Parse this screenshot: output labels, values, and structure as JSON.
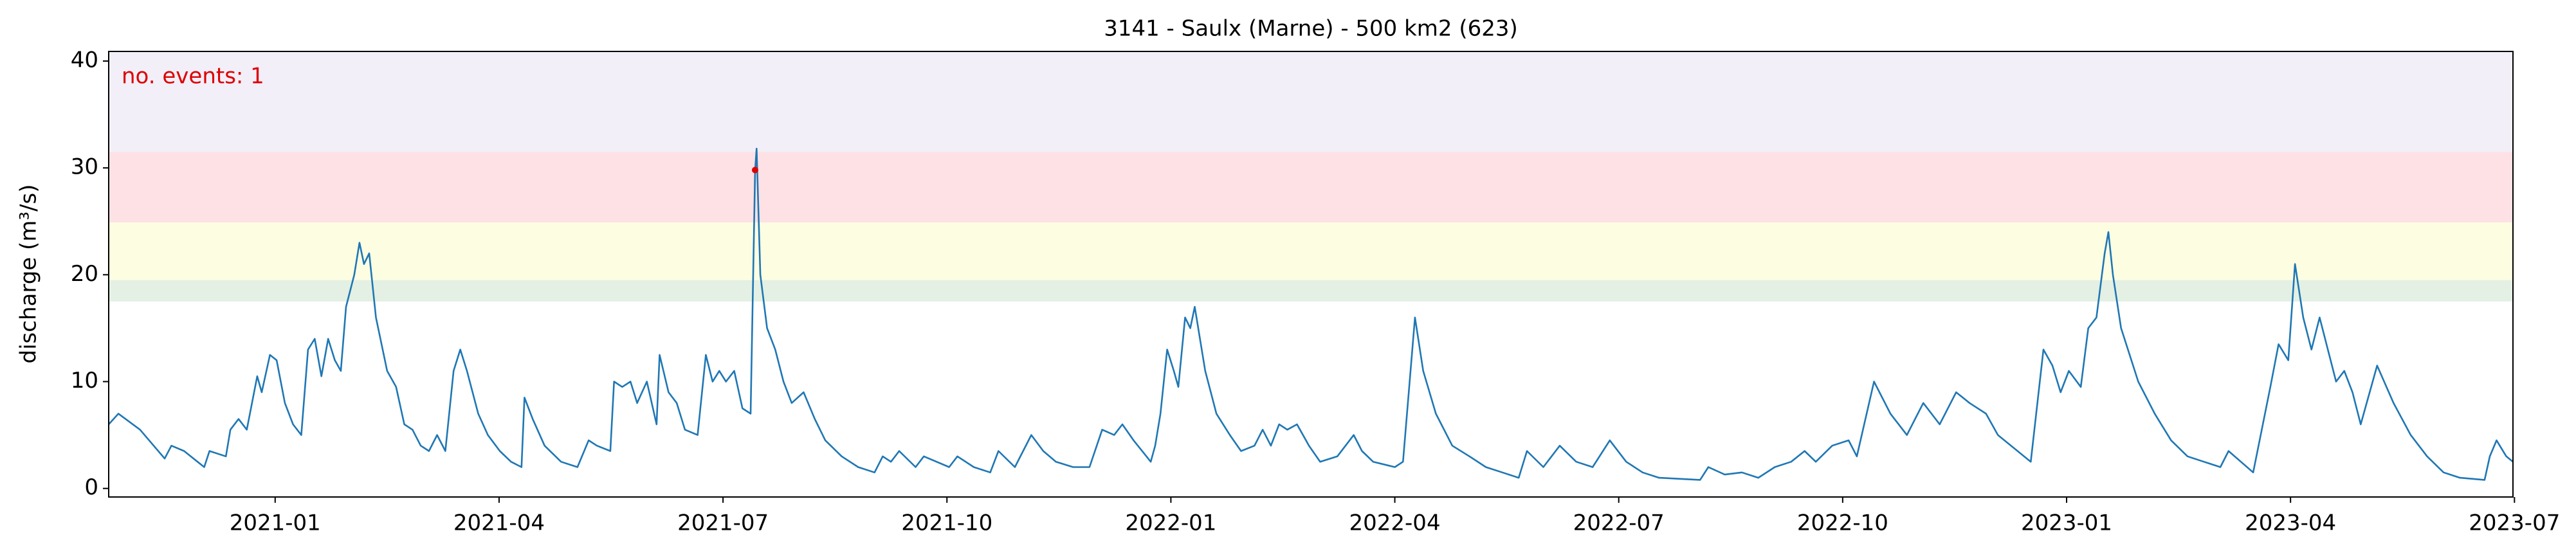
{
  "chart_data": {
    "type": "line",
    "title": "3141 - Saulx (Marne) - 500 km2 (623)",
    "ylabel": "discharge (m³/s)",
    "annotation": "no. events: 1",
    "annotation_color": "#dd0000",
    "xlim": [
      -2.23,
      29.98
    ],
    "xticks": [
      {
        "value": 0,
        "label": "2021-01"
      },
      {
        "value": 3,
        "label": "2021-04"
      },
      {
        "value": 6,
        "label": "2021-07"
      },
      {
        "value": 9,
        "label": "2021-10"
      },
      {
        "value": 12,
        "label": "2022-01"
      },
      {
        "value": 15,
        "label": "2022-04"
      },
      {
        "value": 18,
        "label": "2022-07"
      },
      {
        "value": 21,
        "label": "2022-10"
      },
      {
        "value": 24,
        "label": "2023-01"
      },
      {
        "value": 27,
        "label": "2023-04"
      },
      {
        "value": 30,
        "label": "2023-07"
      }
    ],
    "ylim": [
      -0.8,
      40.9
    ],
    "yticks": [
      0,
      10,
      20,
      30,
      40
    ],
    "bands": [
      {
        "from": 17.5,
        "to": 19.5,
        "color": "#e3f0e3"
      },
      {
        "from": 19.5,
        "to": 24.9,
        "color": "#fdfde2"
      },
      {
        "from": 24.9,
        "to": 31.5,
        "color": "#fde1e4"
      },
      {
        "from": 31.5,
        "to": 40.9,
        "color": "#f2eff9"
      }
    ],
    "events": {
      "color": "#dd0000",
      "x": [
        6.43
      ],
      "values": [
        29.8
      ]
    },
    "series": [
      {
        "color": "#1f77b4",
        "x": [
          -2.23,
          -2.1,
          -1.81,
          -1.48,
          -1.39,
          -1.22,
          -1.04,
          -0.95,
          -0.88,
          -0.66,
          -0.6,
          -0.49,
          -0.38,
          -0.24,
          -0.18,
          -0.07,
          0.02,
          0.13,
          0.24,
          0.35,
          0.44,
          0.53,
          0.62,
          0.71,
          0.8,
          0.88,
          0.95,
          1.06,
          1.13,
          1.19,
          1.26,
          1.35,
          1.5,
          1.62,
          1.73,
          1.84,
          1.95,
          2.06,
          2.17,
          2.28,
          2.39,
          2.48,
          2.57,
          2.72,
          2.85,
          3.01,
          3.16,
          3.3,
          3.34,
          3.45,
          3.61,
          3.83,
          4.05,
          4.2,
          4.31,
          4.49,
          4.54,
          4.65,
          4.76,
          4.85,
          4.98,
          5.11,
          5.15,
          5.27,
          5.38,
          5.49,
          5.66,
          5.77,
          5.86,
          5.95,
          6.04,
          6.15,
          6.26,
          6.37,
          6.43,
          6.45,
          6.5,
          6.59,
          6.7,
          6.81,
          6.92,
          7.08,
          7.23,
          7.37,
          7.59,
          7.81,
          8.03,
          8.14,
          8.25,
          8.36,
          8.58,
          8.69,
          9.03,
          9.14,
          9.36,
          9.58,
          9.69,
          9.91,
          10.13,
          10.29,
          10.46,
          10.69,
          10.91,
          11.08,
          11.24,
          11.35,
          11.5,
          11.73,
          11.79,
          11.86,
          11.95,
          12.04,
          12.1,
          12.19,
          12.26,
          12.32,
          12.46,
          12.61,
          12.79,
          12.94,
          13.12,
          13.23,
          13.34,
          13.45,
          13.56,
          13.69,
          13.85,
          14.0,
          14.23,
          14.45,
          14.56,
          14.71,
          15.0,
          15.11,
          15.27,
          15.38,
          15.55,
          15.77,
          16.0,
          16.22,
          16.44,
          16.66,
          16.77,
          16.99,
          17.21,
          17.43,
          17.65,
          17.88,
          18.1,
          18.32,
          18.54,
          19.09,
          19.2,
          19.42,
          19.65,
          19.87,
          20.09,
          20.31,
          20.49,
          20.64,
          20.86,
          21.08,
          21.19,
          21.42,
          21.64,
          21.86,
          22.08,
          22.3,
          22.52,
          22.7,
          22.92,
          23.08,
          23.52,
          23.69,
          23.81,
          23.92,
          24.03,
          24.19,
          24.29,
          24.4,
          24.51,
          24.56,
          24.62,
          24.73,
          24.96,
          25.18,
          25.4,
          25.62,
          25.84,
          26.06,
          26.17,
          26.5,
          26.73,
          26.84,
          26.97,
          27.06,
          27.17,
          27.28,
          27.39,
          27.5,
          27.61,
          27.72,
          27.83,
          27.94,
          28.16,
          28.38,
          28.61,
          28.83,
          29.05,
          29.27,
          29.6,
          29.67,
          29.76,
          29.89,
          29.98
        ],
        "values": [
          6,
          7,
          5.5,
          2.8,
          4,
          3.5,
          2.5,
          2,
          3.5,
          3,
          5.5,
          6.5,
          5.5,
          10.5,
          9,
          12.5,
          12,
          8,
          6,
          5,
          13,
          14,
          10.5,
          14,
          12,
          11,
          17,
          20,
          23,
          21,
          22,
          16,
          11,
          9.5,
          6,
          5.5,
          4,
          3.5,
          5,
          3.5,
          11,
          13,
          11,
          7,
          5,
          3.5,
          2.5,
          2,
          8.5,
          6.5,
          4,
          2.5,
          2,
          4.5,
          4,
          3.5,
          10,
          9.5,
          10,
          8,
          10,
          6,
          12.5,
          9,
          8,
          5.5,
          5,
          12.5,
          10,
          11,
          10,
          11,
          7.5,
          7,
          29.8,
          31.8,
          20,
          15,
          13,
          10,
          8,
          9,
          6.5,
          4.5,
          3,
          2,
          1.5,
          3,
          2.5,
          3.5,
          2,
          3,
          2,
          3,
          2,
          1.5,
          3.5,
          2,
          5,
          3.5,
          2.5,
          2,
          2,
          5.5,
          5,
          6,
          4.5,
          2.5,
          4,
          7,
          13,
          11,
          9.5,
          16,
          15,
          17,
          11,
          7,
          5,
          3.5,
          4,
          5.5,
          4,
          6,
          5.5,
          6,
          4,
          2.5,
          3,
          5,
          3.5,
          2.5,
          2,
          2.5,
          16,
          11,
          7,
          4,
          3,
          2,
          1.5,
          1,
          3.5,
          2,
          4,
          2.5,
          2,
          4.5,
          2.5,
          1.5,
          1,
          0.8,
          2,
          1.3,
          1.5,
          1,
          2,
          2.5,
          3.5,
          2.5,
          4,
          4.5,
          3,
          10,
          7,
          5,
          8,
          6,
          9,
          8,
          7,
          5,
          2.5,
          13,
          11.5,
          9,
          11,
          9.5,
          15,
          16,
          22,
          24,
          20,
          15,
          10,
          7,
          4.5,
          3,
          2.5,
          2,
          3.5,
          1.5,
          9.5,
          13.5,
          12,
          21,
          16,
          13,
          16,
          13,
          10,
          11,
          9,
          6,
          11.5,
          8,
          5,
          3,
          1.5,
          1,
          0.8,
          3,
          4.5,
          3,
          2.5
        ]
      }
    ]
  }
}
